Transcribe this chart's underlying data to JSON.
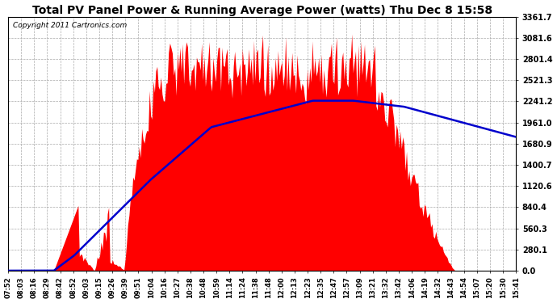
{
  "title": "Total PV Panel Power & Running Average Power (watts) Thu Dec 8 15:58",
  "copyright": "Copyright 2011 Cartronics.com",
  "y_ticks": [
    0.0,
    280.1,
    560.3,
    840.4,
    1120.6,
    1400.7,
    1680.9,
    1961.0,
    2241.2,
    2521.3,
    2801.4,
    3081.6,
    3361.7
  ],
  "y_max": 3361.7,
  "x_labels": [
    "07:52",
    "08:03",
    "08:16",
    "08:29",
    "08:42",
    "08:52",
    "09:03",
    "09:15",
    "09:26",
    "09:39",
    "09:51",
    "10:04",
    "10:16",
    "10:27",
    "10:38",
    "10:48",
    "10:59",
    "11:14",
    "11:24",
    "11:38",
    "11:48",
    "12:00",
    "12:13",
    "12:23",
    "12:35",
    "12:47",
    "12:57",
    "13:09",
    "13:21",
    "13:32",
    "13:42",
    "14:06",
    "14:19",
    "14:32",
    "14:43",
    "14:54",
    "15:07",
    "15:20",
    "15:30",
    "15:41"
  ],
  "bg_color": "#ffffff",
  "plot_bg_color": "#ffffff",
  "bar_color": "#ff0000",
  "line_color": "#0000cc",
  "grid_color": "#aaaaaa",
  "title_fontsize": 10,
  "copyright_fontsize": 6.5,
  "ytick_fontsize": 7,
  "xtick_fontsize": 6
}
